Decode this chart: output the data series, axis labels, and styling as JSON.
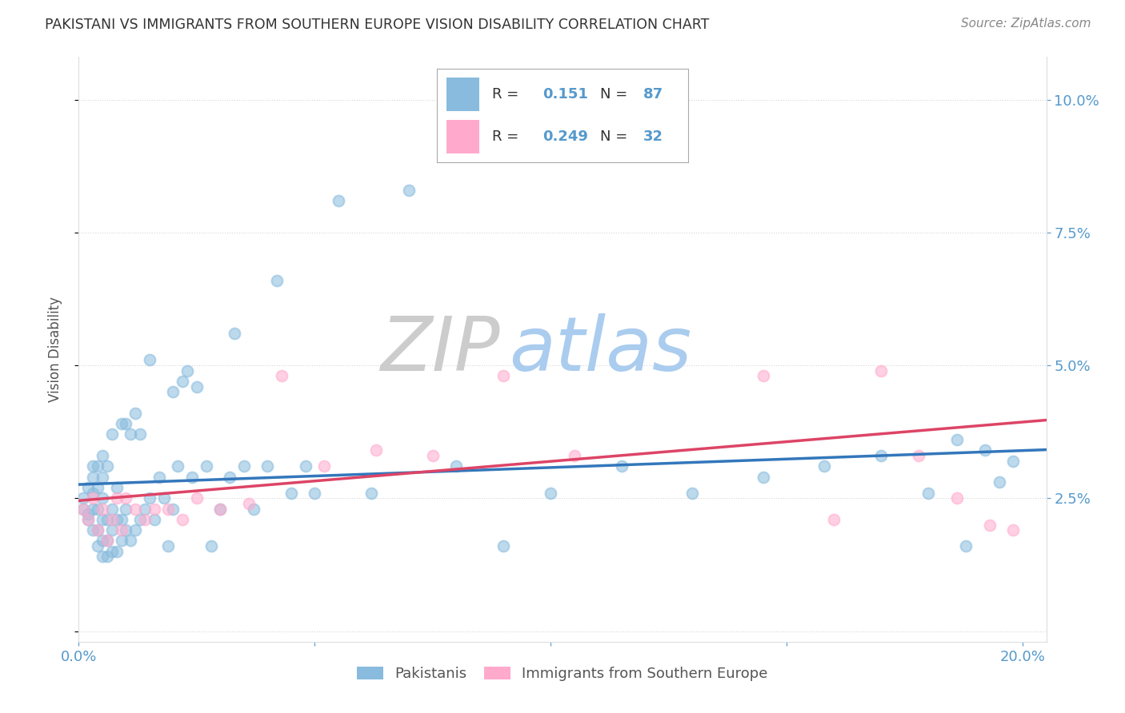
{
  "title": "PAKISTANI VS IMMIGRANTS FROM SOUTHERN EUROPE VISION DISABILITY CORRELATION CHART",
  "source": "Source: ZipAtlas.com",
  "ylabel": "Vision Disability",
  "xlim": [
    0.0,
    0.205
  ],
  "ylim": [
    -0.002,
    0.108
  ],
  "color_blue": "#88bbdd",
  "color_pink": "#ffaacc",
  "line_color_blue": "#3377bb",
  "line_color_pink": "#dd4466",
  "background_color": "#ffffff",
  "grid_color": "#cccccc",
  "title_color": "#333333",
  "axis_label_color": "#555555",
  "right_tick_color": "#5599cc",
  "watermark_zip_color": "#cccccc",
  "watermark_atlas_color": "#99bbdd",
  "pakistanis_x": [
    0.001,
    0.001,
    0.002,
    0.002,
    0.002,
    0.003,
    0.003,
    0.003,
    0.003,
    0.003,
    0.004,
    0.004,
    0.004,
    0.004,
    0.004,
    0.005,
    0.005,
    0.005,
    0.005,
    0.005,
    0.005,
    0.006,
    0.006,
    0.006,
    0.006,
    0.007,
    0.007,
    0.007,
    0.007,
    0.008,
    0.008,
    0.008,
    0.009,
    0.009,
    0.009,
    0.01,
    0.01,
    0.01,
    0.011,
    0.011,
    0.012,
    0.012,
    0.013,
    0.013,
    0.014,
    0.015,
    0.015,
    0.016,
    0.017,
    0.018,
    0.019,
    0.02,
    0.02,
    0.021,
    0.022,
    0.023,
    0.024,
    0.025,
    0.027,
    0.028,
    0.03,
    0.032,
    0.033,
    0.035,
    0.037,
    0.04,
    0.042,
    0.045,
    0.048,
    0.05,
    0.055,
    0.062,
    0.07,
    0.08,
    0.09,
    0.1,
    0.115,
    0.13,
    0.145,
    0.158,
    0.17,
    0.18,
    0.186,
    0.188,
    0.192,
    0.195,
    0.198
  ],
  "pakistanis_y": [
    0.023,
    0.025,
    0.021,
    0.027,
    0.022,
    0.019,
    0.023,
    0.026,
    0.029,
    0.031,
    0.016,
    0.019,
    0.023,
    0.027,
    0.031,
    0.014,
    0.017,
    0.021,
    0.025,
    0.029,
    0.033,
    0.014,
    0.017,
    0.021,
    0.031,
    0.015,
    0.019,
    0.023,
    0.037,
    0.015,
    0.021,
    0.027,
    0.017,
    0.021,
    0.039,
    0.019,
    0.023,
    0.039,
    0.017,
    0.037,
    0.019,
    0.041,
    0.021,
    0.037,
    0.023,
    0.025,
    0.051,
    0.021,
    0.029,
    0.025,
    0.016,
    0.023,
    0.045,
    0.031,
    0.047,
    0.049,
    0.029,
    0.046,
    0.031,
    0.016,
    0.023,
    0.029,
    0.056,
    0.031,
    0.023,
    0.031,
    0.066,
    0.026,
    0.031,
    0.026,
    0.081,
    0.026,
    0.083,
    0.031,
    0.016,
    0.026,
    0.031,
    0.026,
    0.029,
    0.031,
    0.033,
    0.026,
    0.036,
    0.016,
    0.034,
    0.028,
    0.032
  ],
  "southern_europe_x": [
    0.001,
    0.002,
    0.003,
    0.004,
    0.005,
    0.006,
    0.007,
    0.008,
    0.009,
    0.01,
    0.012,
    0.014,
    0.016,
    0.019,
    0.022,
    0.025,
    0.03,
    0.036,
    0.043,
    0.052,
    0.063,
    0.075,
    0.09,
    0.105,
    0.125,
    0.145,
    0.16,
    0.17,
    0.178,
    0.186,
    0.193,
    0.198
  ],
  "southern_europe_y": [
    0.023,
    0.021,
    0.025,
    0.019,
    0.023,
    0.017,
    0.021,
    0.025,
    0.019,
    0.025,
    0.023,
    0.021,
    0.023,
    0.023,
    0.021,
    0.025,
    0.023,
    0.024,
    0.048,
    0.031,
    0.034,
    0.033,
    0.048,
    0.033,
    0.091,
    0.048,
    0.021,
    0.049,
    0.033,
    0.025,
    0.02,
    0.019
  ]
}
